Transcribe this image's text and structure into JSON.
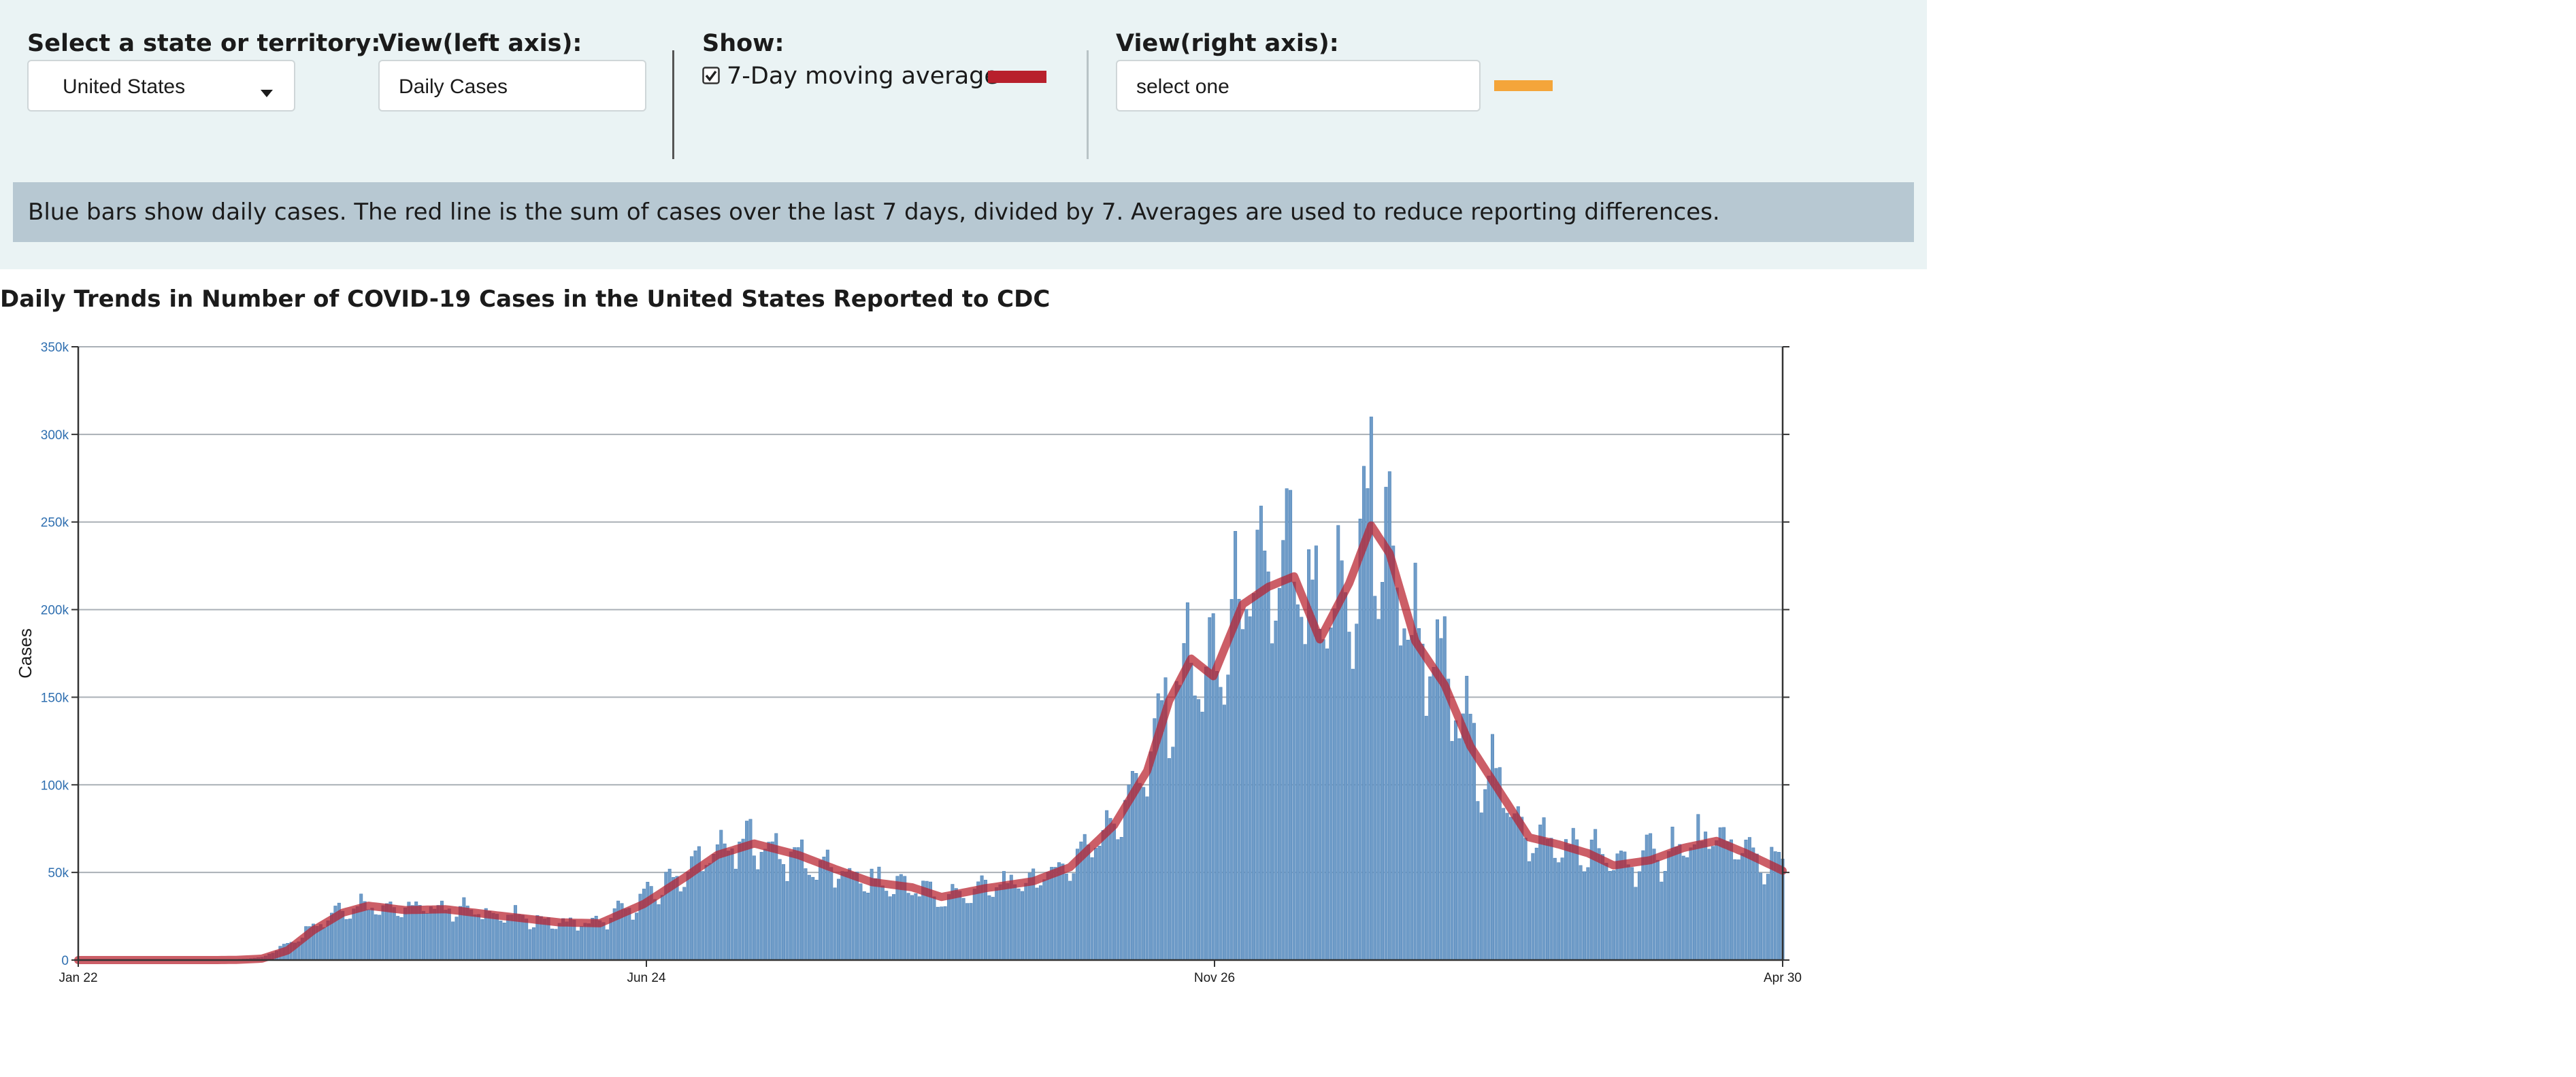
{
  "controls": {
    "state_label": "Select a state or territory:",
    "state_value": "United States",
    "left_axis_label": "View(left axis):",
    "left_axis_value": "Daily Cases",
    "show_label": "Show:",
    "moving_avg_label": "7-Day moving average",
    "moving_avg_checked": true,
    "right_axis_label": "View(right axis):",
    "right_axis_value": "select one"
  },
  "info_note": "Blue bars show daily cases. The red line is the sum of cases over the last 7 days, divided by 7. Averages are used to reduce reporting differences.",
  "colors": {
    "bar": "#6f9cc8",
    "bar_edge": "#4f84b9",
    "moving_avg": "#b8202c",
    "right_axis_swatch": "#f4a53a",
    "panel_bg": "#eaf3f4",
    "note_bg": "#b7c8d2"
  },
  "chart_data": {
    "type": "bar",
    "title": "Daily Trends in Number of COVID-19 Cases in the United States Reported to CDC",
    "ylabel": "Cases",
    "xlabel": "",
    "ylim": [
      0,
      350000
    ],
    "yticks": [
      0,
      50000,
      100000,
      150000,
      200000,
      250000,
      300000,
      350000
    ],
    "ytick_labels": [
      "0",
      "50k",
      "100k",
      "150k",
      "200k",
      "250k",
      "300k",
      "350k"
    ],
    "xticks": [
      "Jan 22",
      "Jun 24",
      "Nov 26",
      "Apr 30"
    ],
    "grid": true,
    "series": [
      {
        "name": "Daily Cases",
        "kind": "bar",
        "x_start": "2020-01-22",
        "x_end": "2021-04-30",
        "anchors": [
          [
            "2020-01-22",
            0
          ],
          [
            "2020-02-28",
            0
          ],
          [
            "2020-03-05",
            200
          ],
          [
            "2020-03-12",
            1500
          ],
          [
            "2020-03-19",
            9000
          ],
          [
            "2020-03-26",
            20000
          ],
          [
            "2020-04-03",
            30000
          ],
          [
            "2020-04-10",
            32000
          ],
          [
            "2020-04-20",
            29000
          ],
          [
            "2020-05-01",
            30000
          ],
          [
            "2020-05-15",
            26000
          ],
          [
            "2020-06-01",
            21000
          ],
          [
            "2020-06-12",
            21000
          ],
          [
            "2020-06-24",
            35000
          ],
          [
            "2020-07-05",
            50000
          ],
          [
            "2020-07-14",
            62000
          ],
          [
            "2020-07-24",
            67000
          ],
          [
            "2020-08-05",
            58000
          ],
          [
            "2020-08-15",
            50000
          ],
          [
            "2020-08-25",
            44000
          ],
          [
            "2020-09-05",
            42000
          ],
          [
            "2020-09-13",
            35000
          ],
          [
            "2020-09-25",
            41000
          ],
          [
            "2020-10-08",
            45000
          ],
          [
            "2020-10-18",
            55000
          ],
          [
            "2020-10-30",
            80000
          ],
          [
            "2020-11-08",
            110000
          ],
          [
            "2020-11-14",
            150000
          ],
          [
            "2020-11-20",
            170000
          ],
          [
            "2020-11-26",
            160000
          ],
          [
            "2020-12-04",
            205000
          ],
          [
            "2020-12-11",
            215000
          ],
          [
            "2020-12-18",
            220000
          ],
          [
            "2020-12-25",
            185000
          ],
          [
            "2021-01-02",
            210000
          ],
          [
            "2021-01-08",
            248000
          ],
          [
            "2021-01-13",
            230000
          ],
          [
            "2021-01-20",
            185000
          ],
          [
            "2021-01-28",
            160000
          ],
          [
            "2021-02-04",
            125000
          ],
          [
            "2021-02-12",
            98000
          ],
          [
            "2021-02-20",
            70000
          ],
          [
            "2021-02-28",
            64000
          ],
          [
            "2021-03-08",
            62000
          ],
          [
            "2021-03-15",
            55000
          ],
          [
            "2021-03-25",
            58000
          ],
          [
            "2021-04-03",
            65000
          ],
          [
            "2021-04-12",
            68000
          ],
          [
            "2021-04-20",
            62000
          ],
          [
            "2021-04-30",
            52000
          ]
        ]
      },
      {
        "name": "7-Day moving average",
        "kind": "line",
        "anchors": [
          [
            "2020-01-22",
            0
          ],
          [
            "2020-02-28",
            0
          ],
          [
            "2020-03-05",
            100
          ],
          [
            "2020-03-12",
            800
          ],
          [
            "2020-03-19",
            5500
          ],
          [
            "2020-03-26",
            17000
          ],
          [
            "2020-04-03",
            27000
          ],
          [
            "2020-04-10",
            31000
          ],
          [
            "2020-04-20",
            28500
          ],
          [
            "2020-05-01",
            29000
          ],
          [
            "2020-05-15",
            25500
          ],
          [
            "2020-06-01",
            21500
          ],
          [
            "2020-06-12",
            21000
          ],
          [
            "2020-06-24",
            32000
          ],
          [
            "2020-07-05",
            47000
          ],
          [
            "2020-07-14",
            60000
          ],
          [
            "2020-07-24",
            66500
          ],
          [
            "2020-08-05",
            60000
          ],
          [
            "2020-08-15",
            52000
          ],
          [
            "2020-08-25",
            44500
          ],
          [
            "2020-09-05",
            41500
          ],
          [
            "2020-09-13",
            36000
          ],
          [
            "2020-09-25",
            41000
          ],
          [
            "2020-10-08",
            45000
          ],
          [
            "2020-10-18",
            53000
          ],
          [
            "2020-10-30",
            77000
          ],
          [
            "2020-11-08",
            108000
          ],
          [
            "2020-11-14",
            148000
          ],
          [
            "2020-11-20",
            172000
          ],
          [
            "2020-11-26",
            162000
          ],
          [
            "2020-12-04",
            203000
          ],
          [
            "2020-12-11",
            213000
          ],
          [
            "2020-12-18",
            219000
          ],
          [
            "2020-12-25",
            183000
          ],
          [
            "2021-01-02",
            215000
          ],
          [
            "2021-01-08",
            248000
          ],
          [
            "2021-01-13",
            232000
          ],
          [
            "2021-01-20",
            182000
          ],
          [
            "2021-01-28",
            157000
          ],
          [
            "2021-02-04",
            122000
          ],
          [
            "2021-02-12",
            96000
          ],
          [
            "2021-02-20",
            70000
          ],
          [
            "2021-02-28",
            66000
          ],
          [
            "2021-03-08",
            61000
          ],
          [
            "2021-03-15",
            54000
          ],
          [
            "2021-03-25",
            57000
          ],
          [
            "2021-04-03",
            64000
          ],
          [
            "2021-04-12",
            68000
          ],
          [
            "2021-04-20",
            61000
          ],
          [
            "2021-04-30",
            51000
          ]
        ]
      }
    ]
  }
}
